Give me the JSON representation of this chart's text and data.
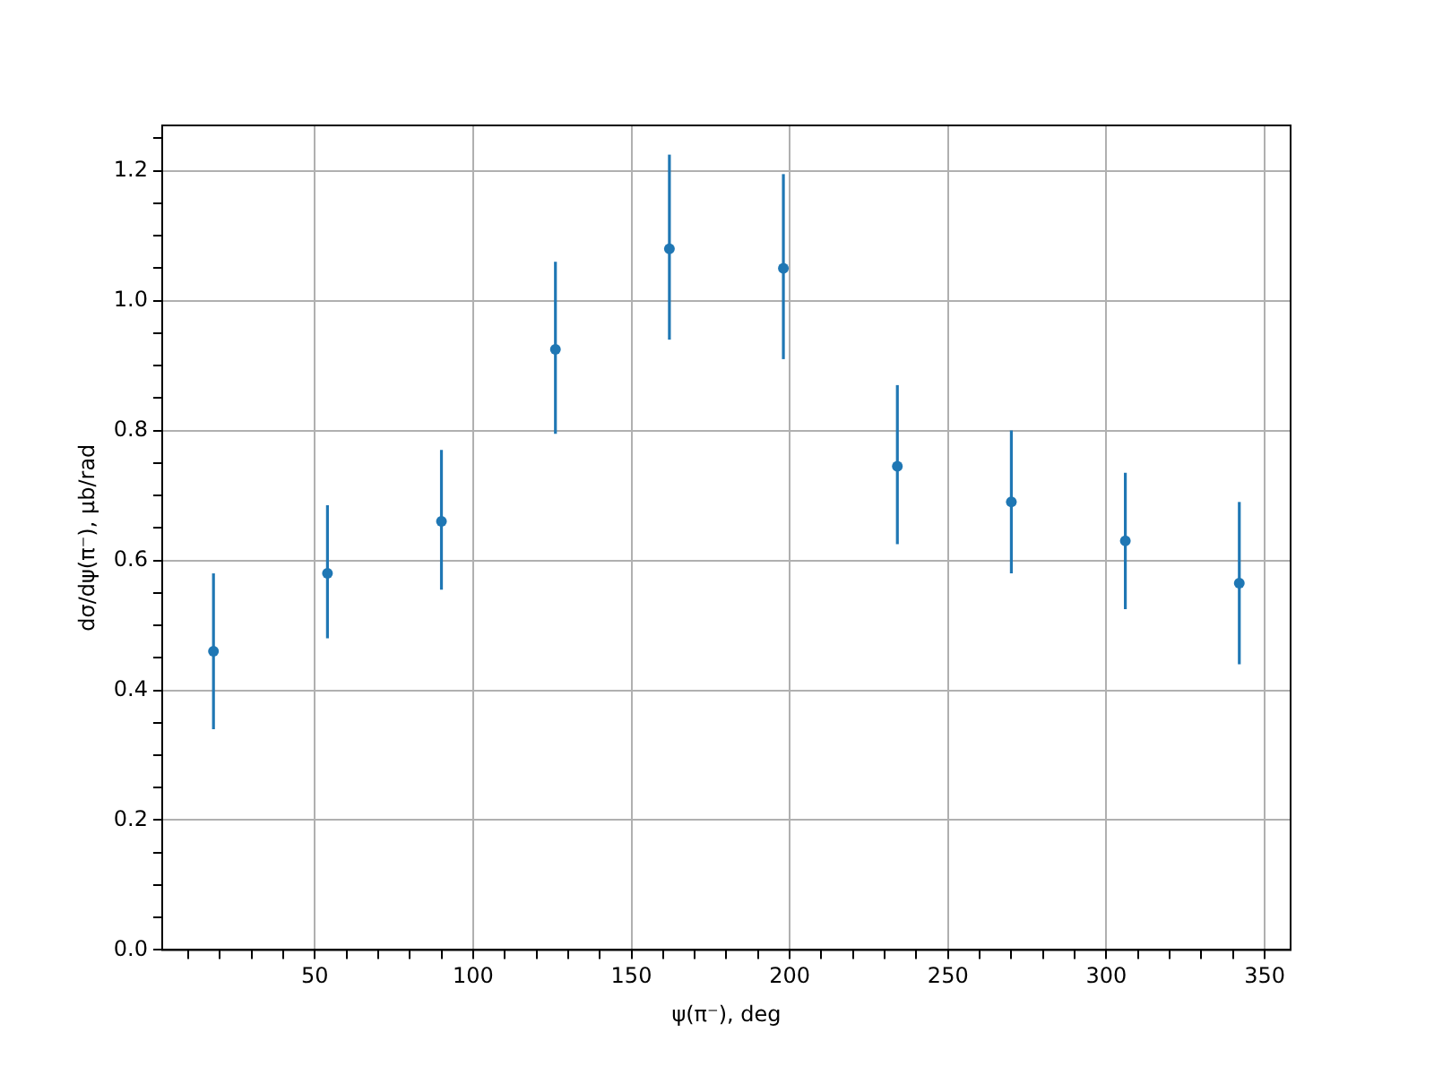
{
  "chart_data": {
    "type": "scatter",
    "xlabel": "ψ(π⁻), deg",
    "ylabel": "dσ/dψ(π⁻), μb/rad",
    "x": [
      18,
      54,
      90,
      126,
      162,
      198,
      234,
      270,
      306,
      342
    ],
    "values": [
      0.46,
      0.58,
      0.66,
      0.925,
      1.08,
      1.05,
      0.745,
      0.69,
      0.63,
      0.565
    ],
    "errors": [
      [
        0.34,
        0.58
      ],
      [
        0.48,
        0.685
      ],
      [
        0.555,
        0.77
      ],
      [
        0.795,
        1.06
      ],
      [
        0.94,
        1.225
      ],
      [
        0.91,
        1.195
      ],
      [
        0.625,
        0.87
      ],
      [
        0.58,
        0.8
      ],
      [
        0.525,
        0.735
      ],
      [
        0.44,
        0.69
      ]
    ],
    "color": "#1f77b4",
    "marker": "circle",
    "grid": true,
    "xlim": [
      1.8,
      358.2
    ],
    "xticks": [
      {
        "value": 10,
        "label": null
      },
      {
        "value": 20,
        "label": null
      },
      {
        "value": 30,
        "label": null
      },
      {
        "value": 40,
        "label": null
      },
      50,
      {
        "value": 60,
        "label": null
      },
      {
        "value": 70,
        "label": null
      },
      {
        "value": 80,
        "label": null
      },
      {
        "value": 90,
        "label": null
      },
      100,
      {
        "value": 110,
        "label": null
      },
      {
        "value": 120,
        "label": null
      },
      {
        "value": 130,
        "label": null
      },
      {
        "value": 140,
        "label": null
      },
      150,
      {
        "value": 160,
        "label": null
      },
      {
        "value": 170,
        "label": null
      },
      {
        "value": 180,
        "label": null
      },
      {
        "value": 190,
        "label": null
      },
      200,
      {
        "value": 210,
        "label": null
      },
      {
        "value": 220,
        "label": null
      },
      {
        "value": 230,
        "label": null
      },
      {
        "value": 240,
        "label": null
      },
      250,
      {
        "value": 260,
        "label": null
      },
      {
        "value": 270,
        "label": null
      },
      {
        "value": 280,
        "label": null
      },
      {
        "value": 290,
        "label": null
      },
      300,
      {
        "value": 310,
        "label": null
      },
      {
        "value": 320,
        "label": null
      },
      {
        "value": 330,
        "label": null
      },
      {
        "value": 340,
        "label": null
      },
      350
    ],
    "ylim": [
      0,
      1.27
    ],
    "yticks": [
      {
        "value": 0,
        "label": "0.0"
      },
      {
        "value": 0.05,
        "label": null
      },
      {
        "value": 0.1,
        "label": null
      },
      {
        "value": 0.15,
        "label": null
      },
      {
        "value": 0.2,
        "label": "0.2"
      },
      {
        "value": 0.25,
        "label": null
      },
      {
        "value": 0.3,
        "label": null
      },
      {
        "value": 0.35,
        "label": null
      },
      {
        "value": 0.4,
        "label": "0.4"
      },
      {
        "value": 0.45,
        "label": null
      },
      {
        "value": 0.5,
        "label": null
      },
      {
        "value": 0.55,
        "label": null
      },
      {
        "value": 0.6,
        "label": "0.6"
      },
      {
        "value": 0.65,
        "label": null
      },
      {
        "value": 0.7,
        "label": null
      },
      {
        "value": 0.75,
        "label": null
      },
      {
        "value": 0.8,
        "label": "0.8"
      },
      {
        "value": 0.85,
        "label": null
      },
      {
        "value": 0.9,
        "label": null
      },
      {
        "value": 0.95,
        "label": null
      },
      {
        "value": 1.0,
        "label": "1.0"
      },
      {
        "value": 1.05,
        "label": null
      },
      {
        "value": 1.1,
        "label": null
      },
      {
        "value": 1.15,
        "label": null
      },
      {
        "value": 1.2,
        "label": "1.2"
      },
      {
        "value": 1.25,
        "label": null
      }
    ]
  }
}
